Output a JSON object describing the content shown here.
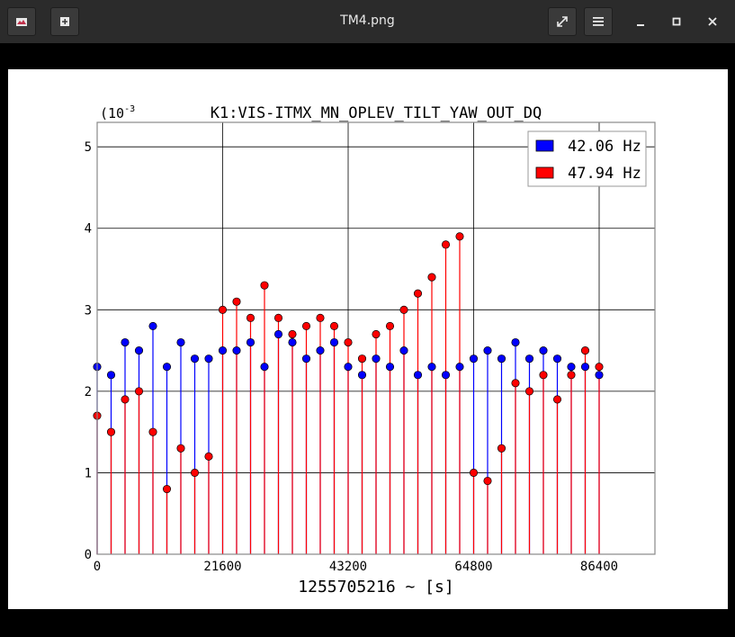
{
  "window": {
    "title": "TM4.png",
    "icons": {
      "app": "app-icon",
      "new_tab": "new-tab-icon",
      "fullscreen": "fullscreen-icon",
      "menu": "menu-icon",
      "minimize": "minimize-icon",
      "maximize": "maximize-icon",
      "close": "close-icon"
    }
  },
  "plot": {
    "title": "K1:VIS-ITMX_MN_OPLEV_TILT_YAW_OUT_DQ",
    "scale_label": "(10",
    "scale_exp": "-3",
    "xlabel": "1255705216 ~ [s]",
    "xticks": [
      "0",
      "21600",
      "43200",
      "64800",
      "86400"
    ],
    "yticks": [
      "0",
      "1",
      "2",
      "3",
      "4",
      "5"
    ],
    "legend": [
      {
        "label": "42.06 Hz",
        "color": "#0000ff"
      },
      {
        "label": "47.94 Hz",
        "color": "#ff0000"
      }
    ]
  },
  "chart_data": {
    "type": "scatter",
    "title": "K1:VIS-ITMX_MN_OPLEV_TILT_YAW_OUT_DQ",
    "xlabel": "1255705216 ~ [s]",
    "ylabel": "",
    "y_unit_scale": "10^-3",
    "xlim": [
      0,
      96000
    ],
    "ylim": [
      0,
      5.3
    ],
    "grid": true,
    "legend_position": "top-right",
    "markers": "circle-with-stem",
    "series": [
      {
        "name": "42.06 Hz",
        "color": "#0000ff",
        "x": [
          0,
          2400,
          4800,
          7200,
          9600,
          12000,
          14400,
          16800,
          19200,
          21600,
          24000,
          26400,
          28800,
          31200,
          33600,
          36000,
          38400,
          40800,
          43200,
          45600,
          48000,
          50400,
          52800,
          55200,
          57600,
          60000,
          62400,
          64800,
          67200,
          69600,
          72000,
          74400,
          76800,
          79200,
          81600,
          84000,
          86400
        ],
        "y": [
          2.3,
          2.2,
          2.6,
          2.5,
          2.8,
          2.3,
          2.6,
          2.4,
          2.4,
          2.5,
          2.5,
          2.6,
          2.3,
          2.7,
          2.6,
          2.4,
          2.5,
          2.6,
          2.3,
          2.2,
          2.4,
          2.3,
          2.5,
          2.2,
          2.3,
          2.2,
          2.3,
          2.4,
          2.5,
          2.4,
          2.6,
          2.4,
          2.5,
          2.4,
          2.3,
          2.3,
          2.2
        ]
      },
      {
        "name": "47.94 Hz",
        "color": "#ff0000",
        "x": [
          0,
          2400,
          4800,
          7200,
          9600,
          12000,
          14400,
          16800,
          19200,
          21600,
          24000,
          26400,
          28800,
          31200,
          33600,
          36000,
          38400,
          40800,
          43200,
          45600,
          48000,
          50400,
          52800,
          55200,
          57600,
          60000,
          62400,
          64800,
          67200,
          69600,
          72000,
          74400,
          76800,
          79200,
          81600,
          84000,
          86400
        ],
        "y": [
          1.7,
          1.5,
          1.9,
          2.0,
          1.5,
          0.8,
          1.3,
          1.0,
          1.2,
          3.0,
          3.1,
          2.9,
          3.3,
          2.9,
          2.7,
          2.8,
          2.9,
          2.8,
          2.6,
          2.4,
          2.7,
          2.8,
          3.0,
          3.2,
          3.4,
          3.8,
          3.9,
          1.0,
          0.9,
          1.3,
          2.1,
          2.0,
          2.2,
          1.9,
          2.2,
          2.5,
          2.3
        ]
      }
    ]
  }
}
